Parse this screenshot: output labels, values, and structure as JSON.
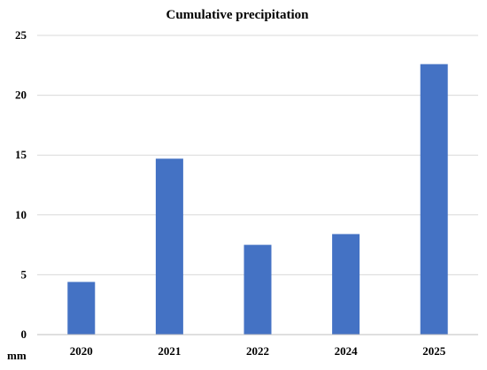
{
  "chart_data": {
    "type": "bar",
    "title": "Cumulative precipitation",
    "unit_label": "mm",
    "xlabel": "",
    "ylabel": "",
    "categories": [
      "2020",
      "2021",
      "2022",
      "2024",
      "2025"
    ],
    "values": [
      4.4,
      14.7,
      7.5,
      8.4,
      22.6
    ],
    "ylim": [
      0,
      25
    ],
    "yticks": [
      "0",
      "5",
      "10",
      "15",
      "20",
      "25"
    ],
    "grid": true,
    "legend": "none",
    "colors": {
      "bar": "#4472C4",
      "grid": "#D9D9D9",
      "axis": "#BFBFBF"
    }
  }
}
